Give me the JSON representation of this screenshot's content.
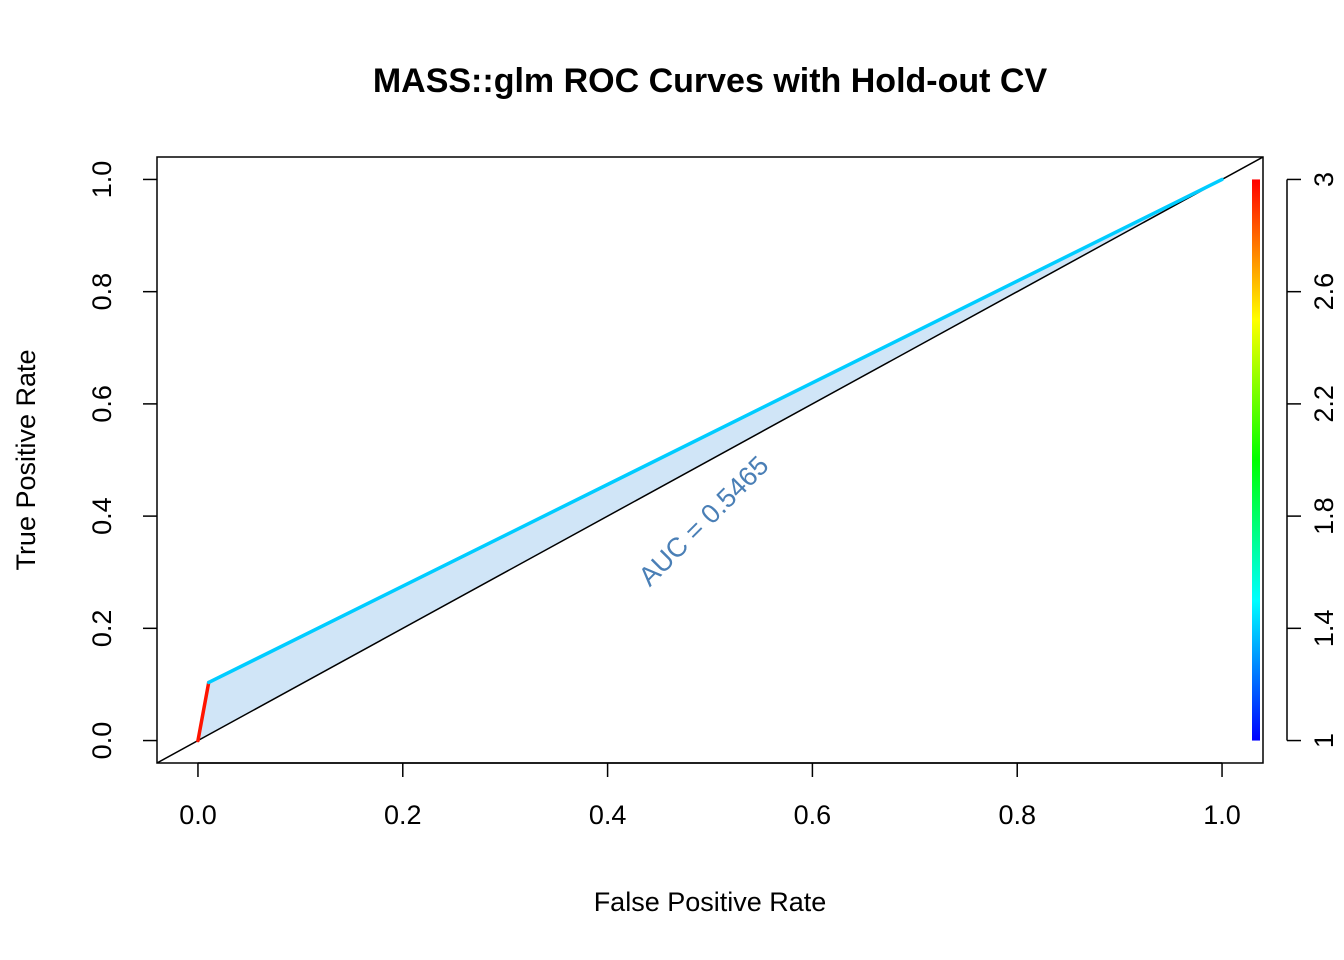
{
  "chart_data": {
    "type": "line",
    "title": "MASS::glm ROC Curves with Hold-out CV",
    "xlabel": "False Positive Rate",
    "ylabel": "True Positive Rate",
    "xlim": [
      -0.04,
      1.04
    ],
    "ylim": [
      -0.04,
      1.04
    ],
    "x_ticks": [
      "0.0",
      "0.2",
      "0.4",
      "0.6",
      "0.8",
      "1.0"
    ],
    "y_ticks": [
      "0.0",
      "0.2",
      "0.4",
      "0.6",
      "0.8",
      "1.0"
    ],
    "grid": false,
    "series": [
      {
        "x": [
          0.0,
          0.0105,
          1.0
        ],
        "y": [
          0.0,
          0.1035,
          1.0
        ],
        "cutoffs": [
          3,
          2,
          1
        ]
      }
    ],
    "diagonal": {
      "x": [
        -0.04,
        1.04
      ],
      "y": [
        -0.04,
        1.04
      ],
      "color": "#000000"
    },
    "fill_color": "#d0e5f7",
    "annotation": {
      "text": "AUC = 0.5465",
      "x": 0.5,
      "y": 0.38,
      "rotation_deg": -45,
      "color": "#4a7fb6"
    },
    "colorbar": {
      "range": [
        1,
        3
      ],
      "tick_labels": [
        "1",
        "1.4",
        "1.8",
        "2.2",
        "2.6",
        "3"
      ],
      "tick_values": [
        1,
        1.4,
        1.8,
        2.2,
        2.6,
        3
      ],
      "colors": [
        "#0000ff",
        "#00ffff",
        "#00ff00",
        "#ffff00",
        "#ff0000"
      ]
    }
  }
}
